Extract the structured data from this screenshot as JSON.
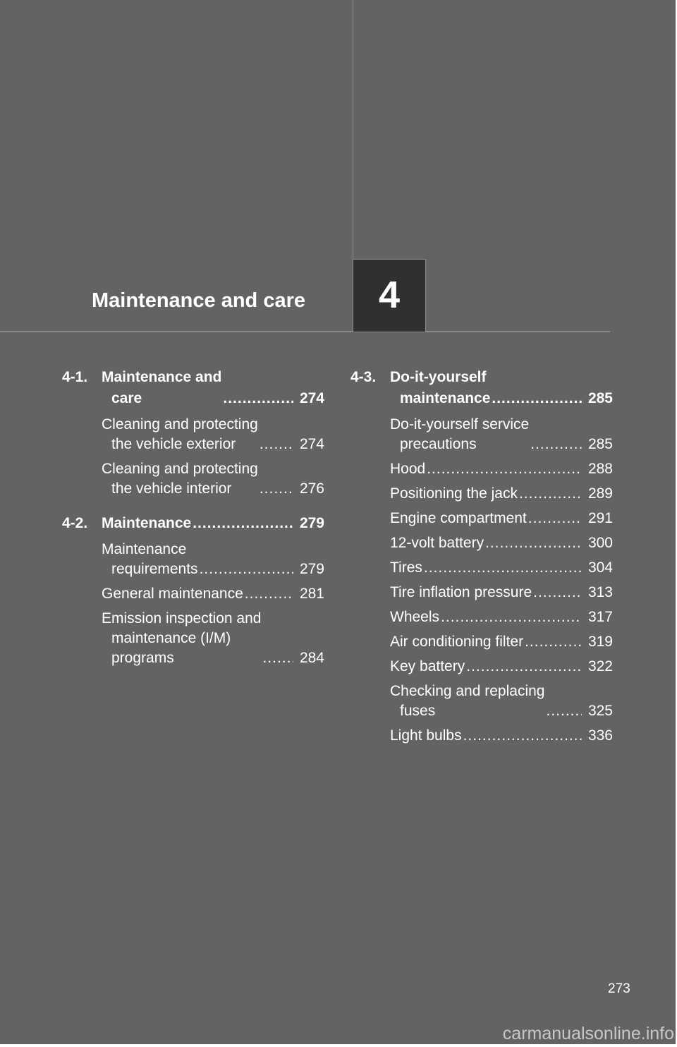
{
  "chapter": {
    "number": "4",
    "title": "Maintenance and care"
  },
  "toc": {
    "left": [
      {
        "num": "4-1.",
        "title": [
          "Maintenance and",
          "care"
        ],
        "page": "274",
        "items": [
          {
            "text": [
              "Cleaning and protecting",
              "the vehicle exterior"
            ],
            "page": "274"
          },
          {
            "text": [
              "Cleaning and protecting",
              "the vehicle interior"
            ],
            "page": "276"
          }
        ]
      },
      {
        "num": "4-2.",
        "title": [
          "Maintenance"
        ],
        "page": "279",
        "items": [
          {
            "text": [
              "Maintenance",
              "requirements"
            ],
            "page": "279"
          },
          {
            "text": [
              "General maintenance"
            ],
            "page": "281"
          },
          {
            "text": [
              "Emission inspection and",
              "maintenance (I/M)",
              "programs"
            ],
            "page": "284"
          }
        ]
      }
    ],
    "right": [
      {
        "num": "4-3.",
        "title": [
          "Do-it-yourself",
          "maintenance"
        ],
        "page": "285",
        "items": [
          {
            "text": [
              "Do-it-yourself service",
              "precautions"
            ],
            "page": "285"
          },
          {
            "text": [
              "Hood"
            ],
            "page": "288"
          },
          {
            "text": [
              "Positioning the jack"
            ],
            "page": "289"
          },
          {
            "text": [
              "Engine compartment"
            ],
            "page": "291"
          },
          {
            "text": [
              "12-volt battery"
            ],
            "page": "300"
          },
          {
            "text": [
              "Tires"
            ],
            "page": "304"
          },
          {
            "text": [
              "Tire inflation pressure"
            ],
            "page": "313"
          },
          {
            "text": [
              "Wheels"
            ],
            "page": "317"
          },
          {
            "text": [
              "Air conditioning filter"
            ],
            "page": "319"
          },
          {
            "text": [
              "Key battery"
            ],
            "page": "322"
          },
          {
            "text": [
              "Checking and replacing",
              "fuses"
            ],
            "page": "325"
          },
          {
            "text": [
              "Light bulbs"
            ],
            "page": "336"
          }
        ]
      }
    ]
  },
  "page_number": "273",
  "watermark": "carmanualsonline.info"
}
